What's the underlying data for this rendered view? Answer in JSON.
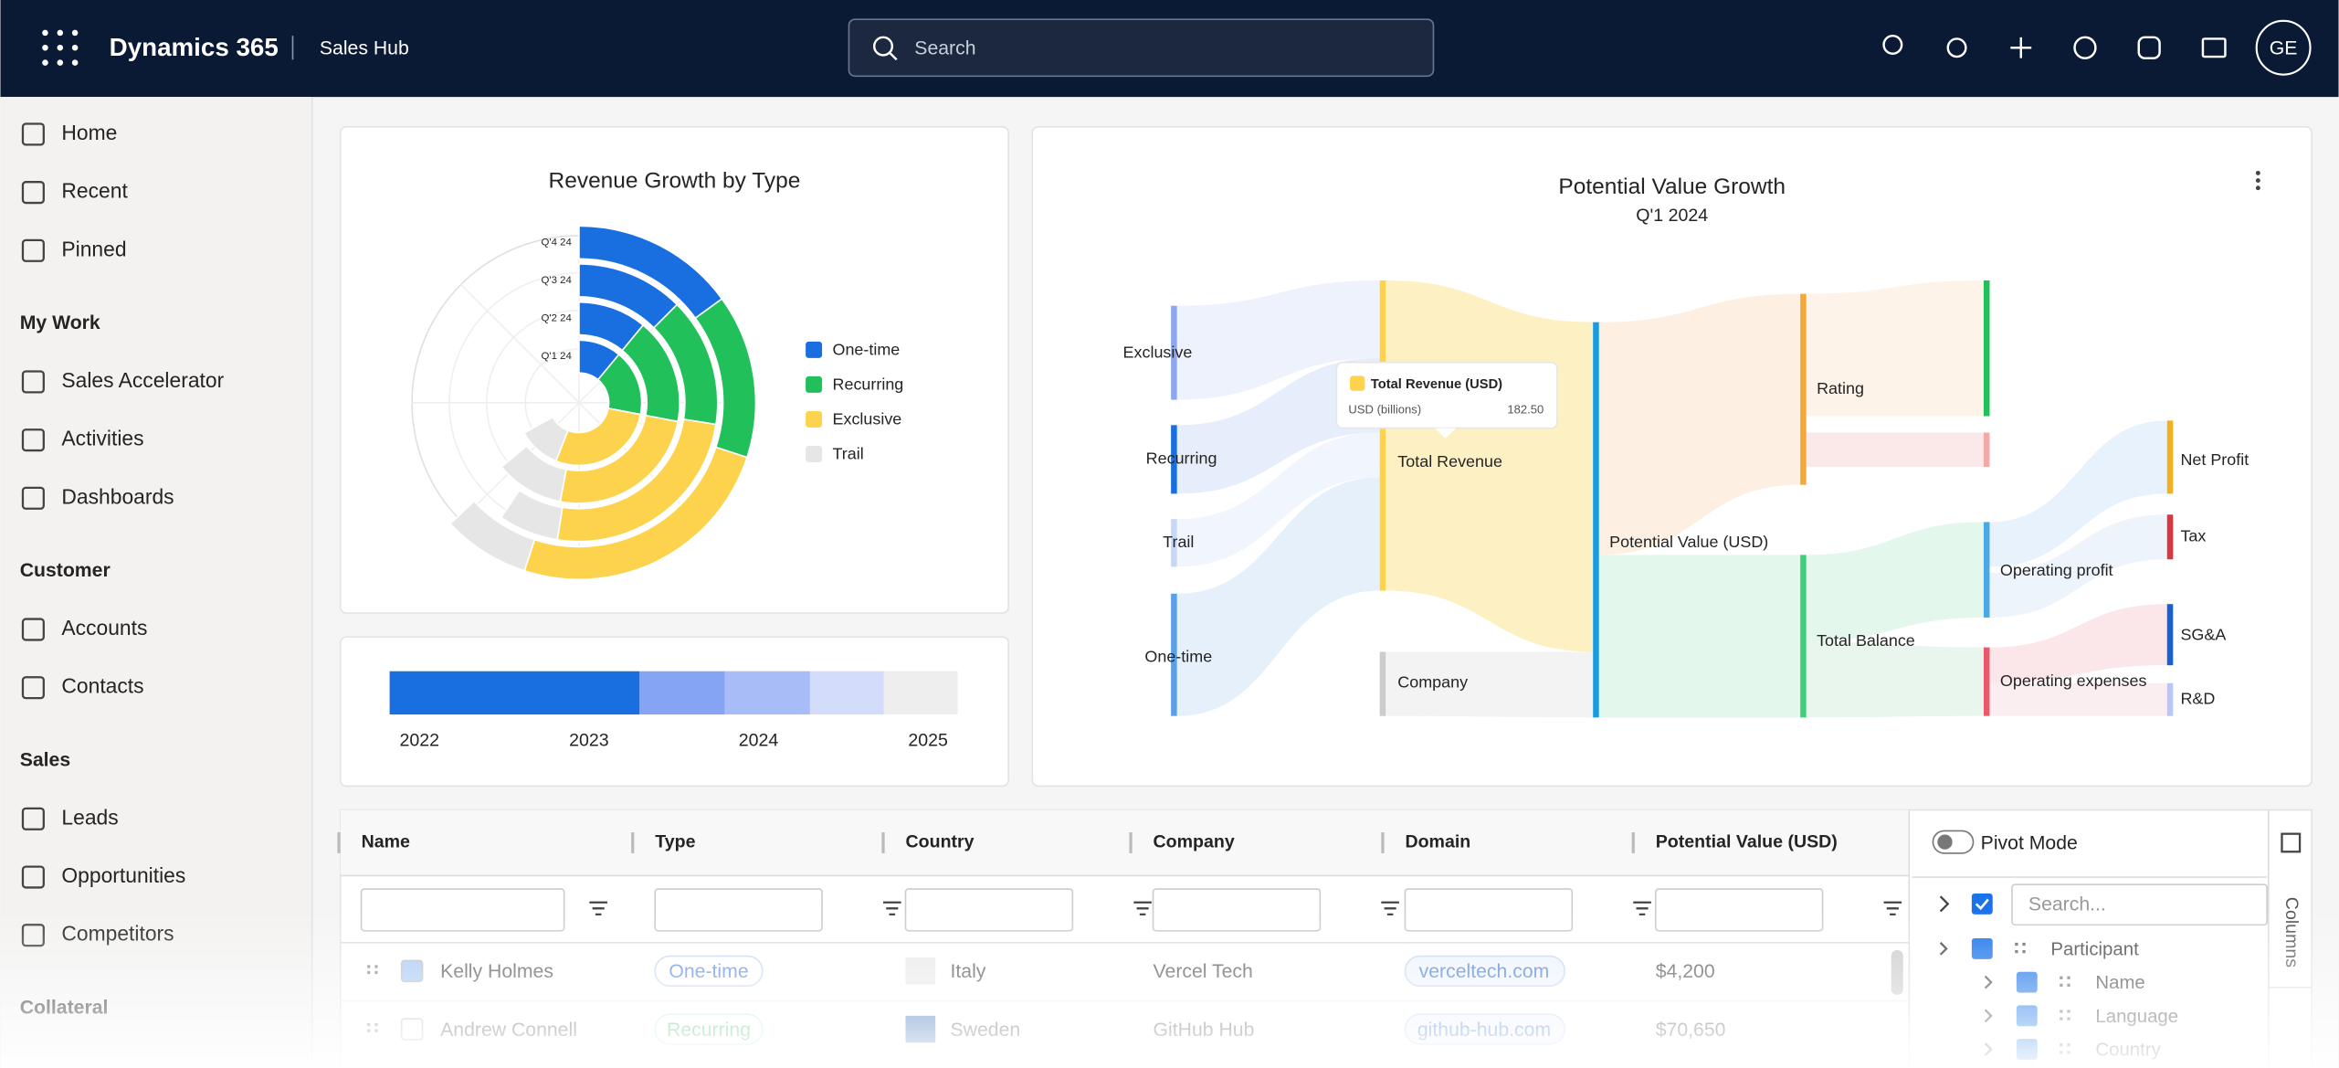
{
  "header": {
    "app": "Dynamics 365",
    "area": "Sales Hub",
    "search": "Search",
    "avatar": "GE"
  },
  "sidebar": {
    "groups": [
      {
        "items": [
          "Home",
          "Recent",
          "Pinned"
        ]
      },
      {
        "title": "My Work",
        "items": [
          "Sales Accelerator",
          "Activities",
          "Dashboards"
        ]
      },
      {
        "title": "Customer",
        "items": [
          "Accounts",
          "Contacts"
        ]
      },
      {
        "title": "Sales",
        "items": [
          "Leads",
          "Opportunities",
          "Competitors"
        ]
      },
      {
        "title": "Collateral",
        "items": []
      }
    ]
  },
  "revenue_chart": {
    "type": "polar_bar",
    "title": "Revenue Growth by Type",
    "categories": [
      "Q'1 24",
      "Q'2 24",
      "Q'3 24",
      "Q'4 24"
    ],
    "series": [
      {
        "name": "One-time",
        "color": "#1a6fe0",
        "values": [
          11,
          11,
          12.5,
          15
        ]
      },
      {
        "name": "Recurring",
        "color": "#22c05a",
        "values": [
          17,
          17,
          15,
          15
        ]
      },
      {
        "name": "Exclusive",
        "color": "#fdd34d",
        "values": [
          28,
          25,
          25,
          25
        ]
      },
      {
        "name": "Trail",
        "color": "#e6e6e6",
        "values": [
          11,
          11,
          7,
          8
        ]
      }
    ]
  },
  "timeline": {
    "type": "stacked_bar",
    "labels": [
      "2022",
      "2023",
      "2024",
      "2025"
    ],
    "segments": [
      {
        "color": "#1a6fe0",
        "value": 44
      },
      {
        "color": "#86a4f4",
        "value": 15
      },
      {
        "color": "#a8bcf7",
        "value": 15
      },
      {
        "color": "#d3ddfb",
        "value": 13
      },
      {
        "color": "#eeeeee",
        "value": 13
      }
    ]
  },
  "sankey": {
    "title": "Potential Value Growth",
    "subtitle": "Q'1 2024",
    "nodes": [
      "Exclusive",
      "Recurring",
      "Trail",
      "One-time",
      "Total Revenue",
      "Company",
      "Potential Value (USD)",
      "Rating",
      "Total Balance",
      "Operating profit",
      "Operating expenses",
      "Net Profit",
      "Tax",
      "SG&A",
      "R&D"
    ],
    "tooltip": {
      "title": "Total Revenue (USD)",
      "unit": "USD (billions)",
      "value": "182.50"
    }
  },
  "table": {
    "columns": [
      "Name",
      "Type",
      "Country",
      "Company",
      "Domain",
      "Potential Value (USD)"
    ],
    "rows": [
      [
        "Kelly Holmes",
        "One-time",
        "Italy",
        "Vercel Tech",
        "verceltech.com",
        "$4,200"
      ],
      [
        "Andrew Connell",
        "Recurring",
        "Sweden",
        "GitHub Hub",
        "github-hub.com",
        "$70,650"
      ]
    ]
  },
  "panel": {
    "pivot": "Pivot Mode",
    "search": "Search...",
    "tree": [
      "Participant",
      "Name",
      "Language",
      "Country"
    ],
    "tab": "Columns"
  }
}
